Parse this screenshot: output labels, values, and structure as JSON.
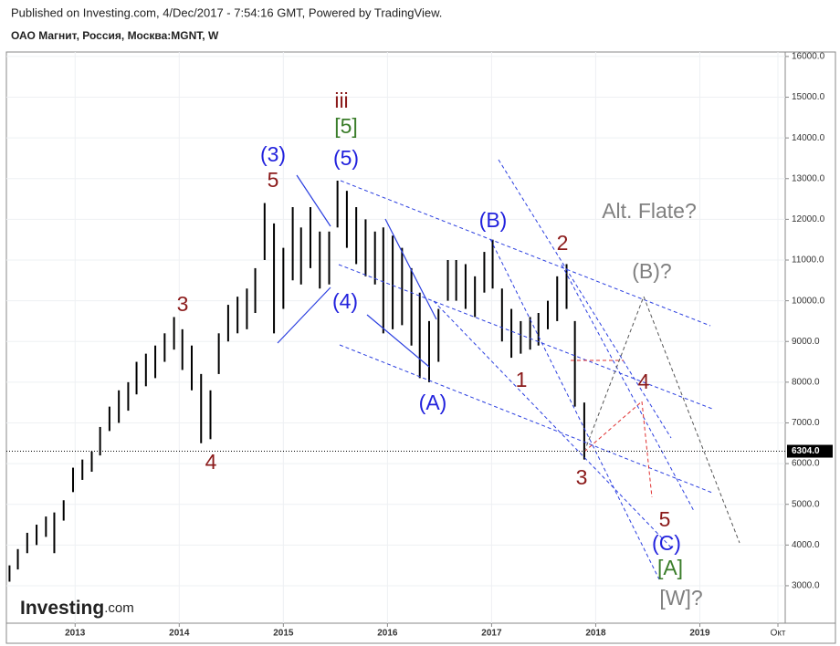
{
  "source": "Published on Investing.com, 4/Dec/2017 - 7:54:16 GMT, Powered by TradingView.",
  "chart_data": {
    "type": "ohlc",
    "title": "ОАО Магнит, Россия, Москва:MGNT, W",
    "logo_name": "Investing",
    "logo_suffix": ".com",
    "color": "#000000",
    "grid": true,
    "x": [
      2012.37,
      2012.45,
      2012.54,
      2012.63,
      2012.72,
      2012.8,
      2012.89,
      2012.98,
      2013.07,
      2013.16,
      2013.24,
      2013.33,
      2013.42,
      2013.51,
      2013.59,
      2013.68,
      2013.77,
      2013.86,
      2013.95,
      2014.03,
      2014.12,
      2014.21,
      2014.3,
      2014.38,
      2014.47,
      2014.56,
      2014.65,
      2014.73,
      2014.82,
      2014.91,
      2015.0,
      2015.09,
      2015.17,
      2015.26,
      2015.35,
      2015.44,
      2015.52,
      2015.61,
      2015.7,
      2015.79,
      2015.88,
      2015.96,
      2016.05,
      2016.14,
      2016.23,
      2016.31,
      2016.4,
      2016.49,
      2016.58,
      2016.66,
      2016.75,
      2016.84,
      2016.93,
      2017.01,
      2017.1,
      2017.19,
      2017.28,
      2017.37,
      2017.45,
      2017.54,
      2017.63,
      2017.72,
      2017.8,
      2017.89
    ],
    "high": [
      3500,
      3900,
      4300,
      4500,
      4700,
      4800,
      5100,
      5900,
      6100,
      6300,
      6900,
      7400,
      7800,
      8000,
      8500,
      8700,
      8900,
      9200,
      9600,
      9300,
      8900,
      8200,
      7800,
      9200,
      9900,
      10100,
      10300,
      10800,
      12400,
      11900,
      11300,
      12300,
      11800,
      12300,
      11700,
      11700,
      12950,
      12700,
      12300,
      12000,
      11700,
      11800,
      11600,
      11300,
      10800,
      10200,
      9500,
      9800,
      11000,
      11000,
      10900,
      10600,
      11200,
      11500,
      10300,
      9800,
      9500,
      9600,
      9700,
      10000,
      10600,
      10900,
      9500,
      7500
    ],
    "low": [
      3100,
      3400,
      3800,
      4000,
      4200,
      3800,
      4600,
      5300,
      5600,
      5800,
      6200,
      6800,
      7000,
      7300,
      7700,
      7900,
      8100,
      8500,
      8800,
      8300,
      7800,
      6500,
      6600,
      8200,
      9000,
      9200,
      9300,
      9700,
      11000,
      9200,
      9800,
      10500,
      10400,
      10800,
      10300,
      10400,
      11800,
      11300,
      10900,
      10600,
      10400,
      9200,
      9300,
      9400,
      8900,
      8100,
      8000,
      8500,
      10000,
      10000,
      9800,
      9600,
      10200,
      10300,
      9000,
      8600,
      8700,
      8800,
      8900,
      9300,
      9500,
      9800,
      7400,
      6100
    ],
    "last": {
      "value": 6304,
      "label": "6304.0"
    },
    "last_color": "#000000",
    "xlim": [
      2012.34,
      2019.82
    ],
    "xticks": [
      2013,
      2014,
      2015,
      2016,
      2017,
      2018,
      2019,
      {
        "value": 2019.75,
        "label": "Окт"
      }
    ],
    "ylim": [
      2080,
      16110
    ],
    "yticks": [
      {
        "value": 3000,
        "label": "3000.0"
      },
      {
        "value": 4000,
        "label": "4000.0"
      },
      {
        "value": 5000,
        "label": "5000.0"
      },
      {
        "value": 6000,
        "label": "6000.0"
      },
      {
        "value": 7000,
        "label": "7000.0"
      },
      {
        "value": 8000,
        "label": "8000.0"
      },
      {
        "value": 9000,
        "label": "9000.0"
      },
      {
        "value": 10000,
        "label": "10000.0"
      },
      {
        "value": 11000,
        "label": "11000.0"
      },
      {
        "value": 12000,
        "label": "12000.0"
      },
      {
        "value": 13000,
        "label": "13000.0"
      },
      {
        "value": 14000,
        "label": "14000.0"
      },
      {
        "value": 15000,
        "label": "15000.0"
      },
      {
        "value": 16000,
        "label": "16000.0"
      }
    ],
    "annotations": [
      {
        "text": "iii",
        "color": "#8b1a1a"
      },
      {
        "text": "[5]",
        "color": "#3a7d2a"
      },
      {
        "text": "(3)",
        "color": "#2222dd"
      },
      {
        "text": "(5)",
        "color": "#2222dd"
      },
      {
        "text": "5",
        "color": "#8b1a1a"
      },
      {
        "text": "3",
        "color": "#8b1a1a"
      },
      {
        "text": "4",
        "color": "#8b1a1a"
      },
      {
        "text": "(4)",
        "color": "#2222dd"
      },
      {
        "text": "(A)",
        "color": "#2222dd"
      },
      {
        "text": "(B)",
        "color": "#2222dd"
      },
      {
        "text": "2",
        "color": "#8b1a1a"
      },
      {
        "text": "1",
        "color": "#8b1a1a"
      },
      {
        "text": "3",
        "color": "#8b1a1a"
      },
      {
        "text": "4",
        "color": "#8b1a1a"
      },
      {
        "text": "5",
        "color": "#8b1a1a"
      },
      {
        "text": "(C)",
        "color": "#2222dd"
      },
      {
        "text": "[A]",
        "color": "#3a7d2a"
      },
      {
        "text": "[W]?",
        "color": "#808080"
      },
      {
        "text": "Alt. Flate?",
        "color": "#808080"
      },
      {
        "text": "(B)?",
        "color": "#808080"
      }
    ]
  }
}
